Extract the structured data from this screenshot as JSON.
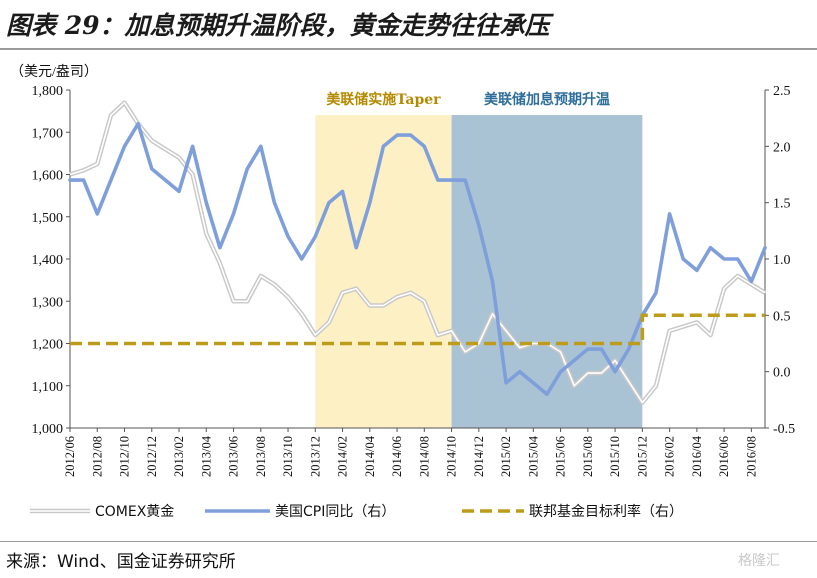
{
  "title": "图表 29：加息预期升温阶段，黄金走势往往承压",
  "source": "来源：Wind、国金证券研究所",
  "watermark": "格隆汇",
  "chart_data": {
    "type": "line",
    "left_axis_label": "（美元/盎司）",
    "left_ylim": [
      1000,
      1800
    ],
    "left_ticks": [
      "1,000",
      "1,100",
      "1,200",
      "1,300",
      "1,400",
      "1,500",
      "1,600",
      "1,700",
      "1,800"
    ],
    "right_ylim": [
      -0.5,
      2.5
    ],
    "right_ticks": [
      "-0.5",
      "0.0",
      "0.5",
      "1.0",
      "1.5",
      "2.0",
      "2.5"
    ],
    "x_labels": [
      "2012/06",
      "2012/08",
      "2012/10",
      "2012/12",
      "2013/02",
      "2013/04",
      "2013/06",
      "2013/08",
      "2013/10",
      "2013/12",
      "2014/02",
      "2014/04",
      "2014/06",
      "2014/08",
      "2014/10",
      "2014/12",
      "2015/02",
      "2015/04",
      "2015/06",
      "2015/08",
      "2015/10",
      "2015/12",
      "2016/02",
      "2016/04",
      "2016/06",
      "2016/08"
    ],
    "regions": [
      {
        "label": "美联储实施Taper",
        "from": "2013/12",
        "to": "2014/10",
        "color": "#fdf0c4",
        "text_color": "#b58a00"
      },
      {
        "label": "美联储加息预期升温",
        "from": "2014/10",
        "to": "2015/12",
        "color": "#a9c3d5",
        "text_color": "#2f6e9b"
      }
    ],
    "series": [
      {
        "name": "COMEX黄金",
        "axis": "left",
        "color": "#c8c8c8",
        "x": [
          "2012/06",
          "2012/07",
          "2012/08",
          "2012/09",
          "2012/10",
          "2012/11",
          "2012/12",
          "2013/01",
          "2013/02",
          "2013/03",
          "2013/04",
          "2013/05",
          "2013/06",
          "2013/07",
          "2013/08",
          "2013/09",
          "2013/10",
          "2013/11",
          "2013/12",
          "2014/01",
          "2014/02",
          "2014/03",
          "2014/04",
          "2014/05",
          "2014/06",
          "2014/07",
          "2014/08",
          "2014/09",
          "2014/10",
          "2014/11",
          "2014/12",
          "2015/01",
          "2015/02",
          "2015/03",
          "2015/04",
          "2015/05",
          "2015/06",
          "2015/07",
          "2015/08",
          "2015/09",
          "2015/10",
          "2015/12",
          "2016/01",
          "2016/02",
          "2016/03",
          "2016/04",
          "2016/05",
          "2016/06",
          "2016/07",
          "2016/08",
          "2016/09"
        ],
        "values": [
          1600,
          1610,
          1625,
          1740,
          1770,
          1720,
          1680,
          1660,
          1640,
          1600,
          1460,
          1390,
          1300,
          1300,
          1360,
          1340,
          1310,
          1270,
          1220,
          1250,
          1320,
          1330,
          1290,
          1290,
          1310,
          1320,
          1300,
          1220,
          1230,
          1180,
          1200,
          1270,
          1230,
          1190,
          1200,
          1200,
          1180,
          1100,
          1130,
          1130,
          1160,
          1060,
          1100,
          1230,
          1240,
          1250,
          1220,
          1330,
          1360,
          1340,
          1320
        ]
      },
      {
        "name": "美国CPI同比（右）",
        "axis": "right",
        "color": "#7f9fdb",
        "x": [
          "2012/06",
          "2012/07",
          "2012/08",
          "2012/09",
          "2012/10",
          "2012/11",
          "2012/12",
          "2013/01",
          "2013/02",
          "2013/03",
          "2013/04",
          "2013/05",
          "2013/06",
          "2013/07",
          "2013/08",
          "2013/09",
          "2013/10",
          "2013/11",
          "2013/12",
          "2014/01",
          "2014/02",
          "2014/03",
          "2014/04",
          "2014/05",
          "2014/06",
          "2014/07",
          "2014/08",
          "2014/09",
          "2014/10",
          "2014/11",
          "2014/12",
          "2015/01",
          "2015/02",
          "2015/03",
          "2015/04",
          "2015/05",
          "2015/06",
          "2015/07",
          "2015/08",
          "2015/09",
          "2015/10",
          "2015/11",
          "2015/12",
          "2016/01",
          "2016/02",
          "2016/03",
          "2016/04",
          "2016/05",
          "2016/06",
          "2016/07",
          "2016/08",
          "2016/09"
        ],
        "values": [
          1.7,
          1.7,
          1.4,
          1.7,
          2.0,
          2.2,
          1.8,
          1.7,
          1.6,
          2.0,
          1.5,
          1.1,
          1.4,
          1.8,
          2.0,
          1.5,
          1.2,
          1.0,
          1.2,
          1.5,
          1.6,
          1.1,
          1.5,
          2.0,
          2.1,
          2.1,
          2.0,
          1.7,
          1.7,
          1.7,
          1.3,
          0.8,
          -0.1,
          0.0,
          -0.1,
          -0.2,
          0.0,
          0.1,
          0.2,
          0.2,
          0.0,
          0.2,
          0.5,
          0.7,
          1.4,
          1.0,
          0.9,
          1.1,
          1.0,
          1.0,
          0.8,
          1.1
        ]
      },
      {
        "name": "联邦基金目标利率（右）",
        "axis": "right",
        "color": "#bc9c1a",
        "x": [
          "2012/06",
          "2015/12",
          "2015/12",
          "2016/09"
        ],
        "values": [
          0.25,
          0.25,
          0.5,
          0.5
        ]
      }
    ]
  }
}
